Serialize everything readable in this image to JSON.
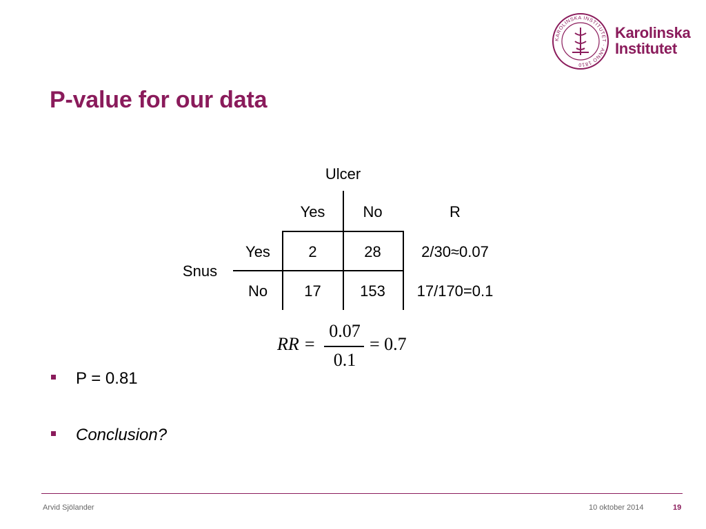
{
  "logo": {
    "line1": "Karolinska",
    "line2": "Institutet",
    "seal_text": "KAROLINSKA INSTITUTET · ANNO 1810"
  },
  "title": "P-value for our data",
  "table": {
    "outcome_label": "Ulcer",
    "exposure_label": "Snus",
    "col_headers": [
      "Yes",
      "No",
      "R"
    ],
    "rows": [
      {
        "label": "Yes",
        "yes": "2",
        "no": "28",
        "r": "2/30≈0.07"
      },
      {
        "label": "No",
        "yes": "17",
        "no": "153",
        "r": "17/170=0.1"
      }
    ]
  },
  "formula": {
    "lhs": "RR =",
    "numerator": "0.07",
    "denominator": "0.1",
    "rhs": "= 0.7"
  },
  "bullets": [
    {
      "text": "P = 0.81",
      "italic": false
    },
    {
      "text": "Conclusion?",
      "italic": true
    }
  ],
  "footer": {
    "author": "Arvid Sjölander",
    "date": "10 oktober 2014",
    "page": "19"
  },
  "colors": {
    "brand": "#8a1b5b"
  }
}
